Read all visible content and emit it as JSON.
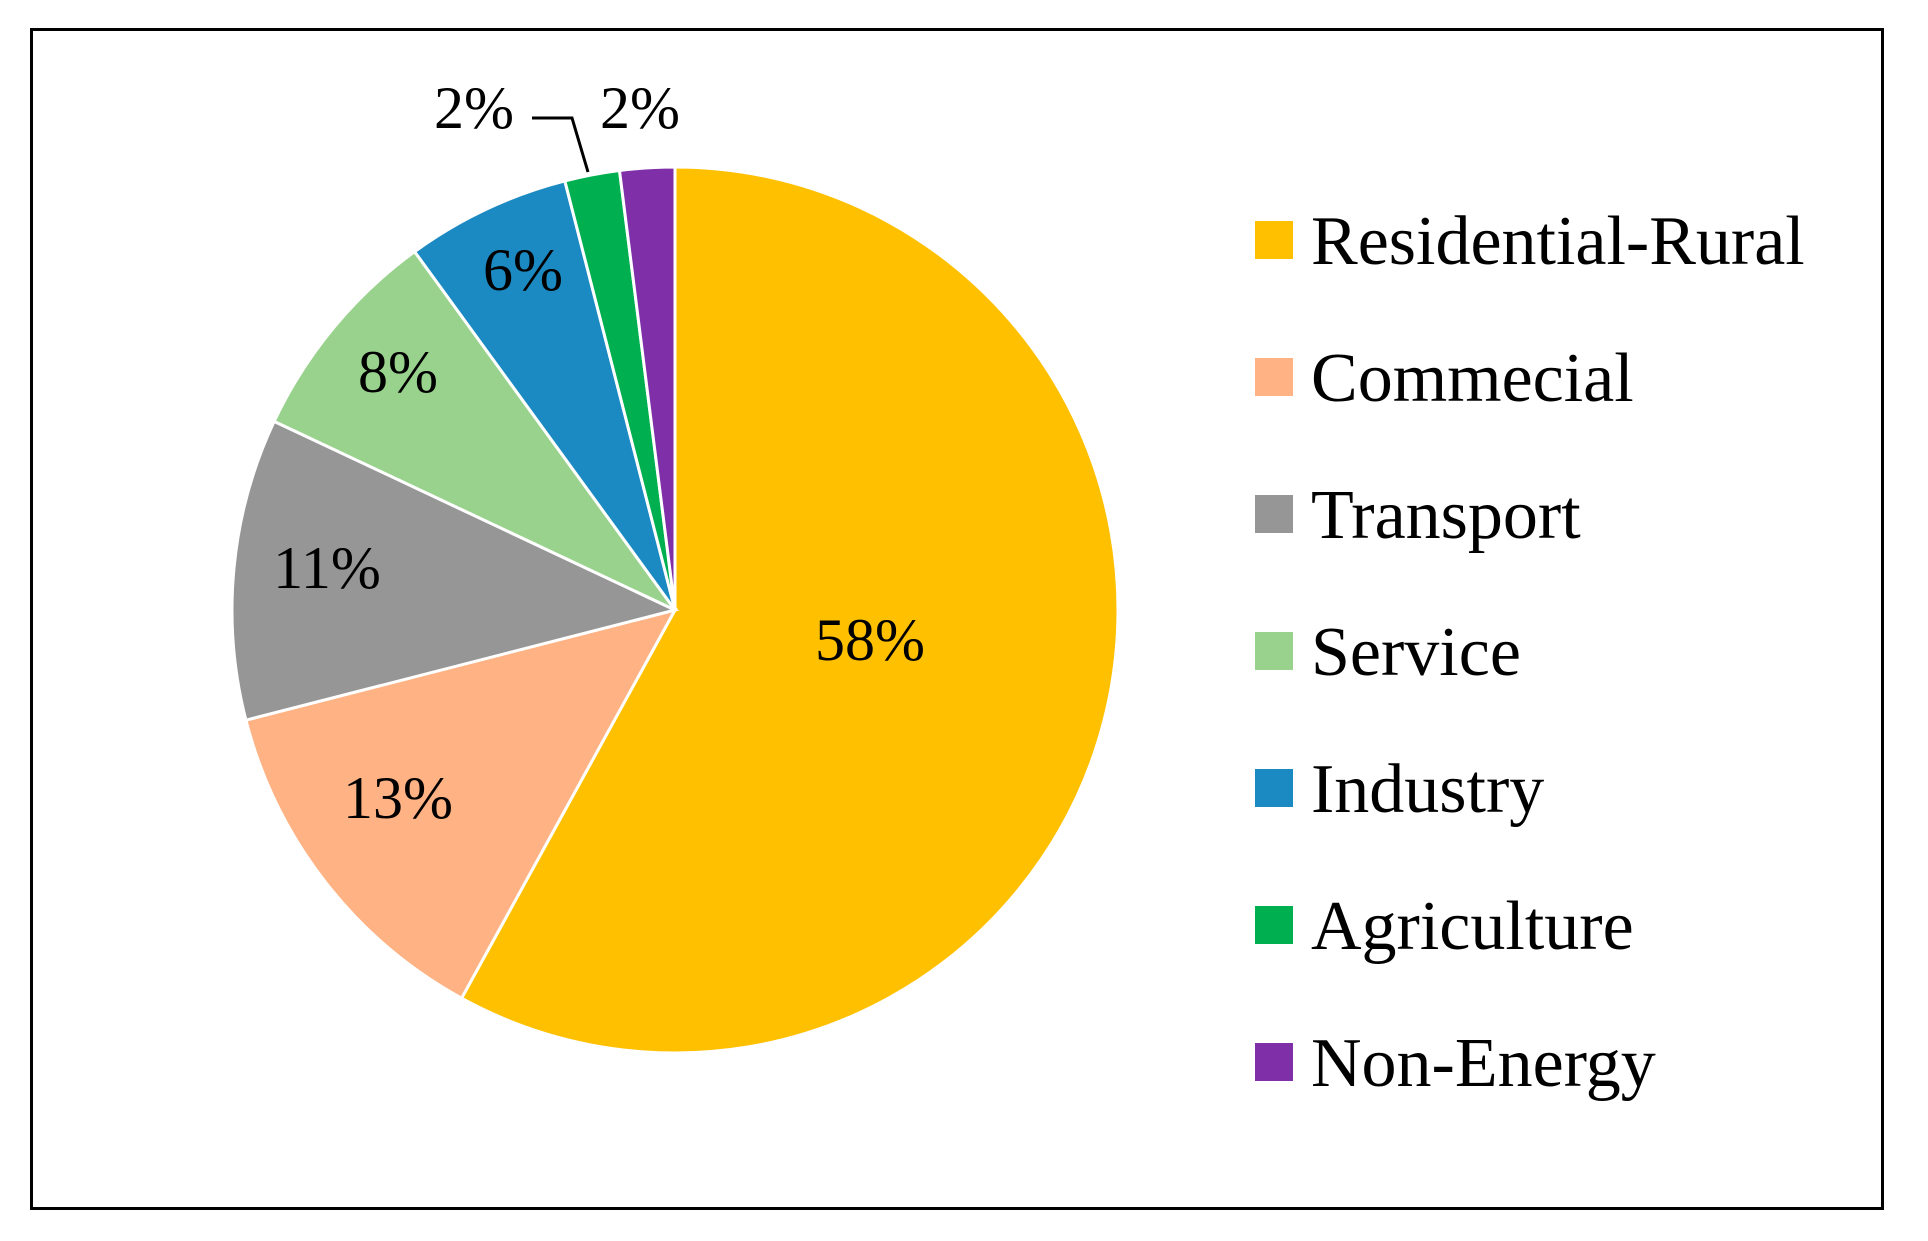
{
  "chart_data": {
    "type": "pie",
    "title": "",
    "start_angle_deg": 0,
    "direction": "clockwise",
    "slices": [
      {
        "name": "Residential-Rural",
        "value": 58,
        "label": "58%",
        "color": "#FFC000"
      },
      {
        "name": "Commecial",
        "value": 13,
        "label": "13%",
        "color": "#FFB283"
      },
      {
        "name": "Transport",
        "value": 11,
        "label": "11%",
        "color": "#969696"
      },
      {
        "name": "Service",
        "value": 8,
        "label": "8%",
        "color": "#99D28D"
      },
      {
        "name": "Industry",
        "value": 6,
        "label": "6%",
        "color": "#1B8AC2"
      },
      {
        "name": "Agriculture",
        "value": 2,
        "label": "2%",
        "color": "#00B050"
      },
      {
        "name": "Non-Energy",
        "value": 2,
        "label": "2%",
        "color": "#7F2FA8"
      }
    ],
    "legend": {
      "position": "right",
      "entries": [
        "Residential-Rural",
        "Commecial",
        "Transport",
        "Service",
        "Industry",
        "Agriculture",
        "Non-Energy"
      ]
    },
    "border": true,
    "border_color": "#000000"
  }
}
